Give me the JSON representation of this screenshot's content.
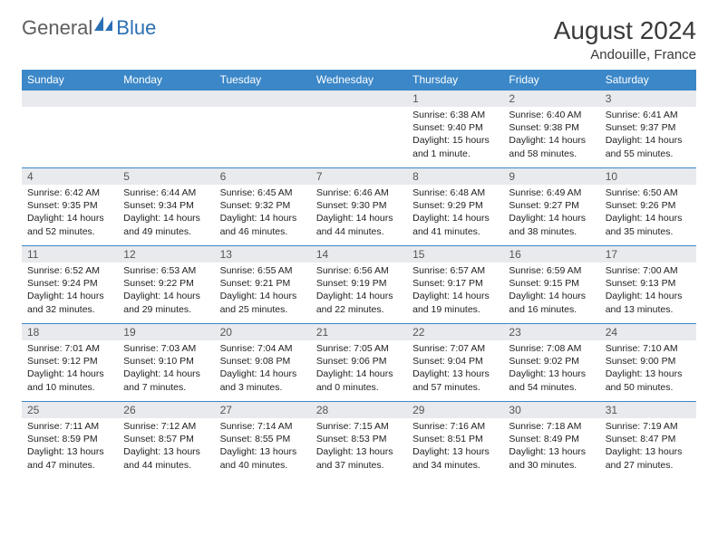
{
  "brand": {
    "part1": "General",
    "part2": "Blue"
  },
  "title": "August 2024",
  "location": "Andouille, France",
  "day_headers": [
    "Sunday",
    "Monday",
    "Tuesday",
    "Wednesday",
    "Thursday",
    "Friday",
    "Saturday"
  ],
  "colors": {
    "header_bg": "#3b87c8",
    "header_text": "#ffffff",
    "daynum_bg": "#e8eaed",
    "border": "#3b87c8",
    "logo_grey": "#5e5e5e",
    "logo_blue": "#2b6fb5"
  },
  "weeks": [
    [
      null,
      null,
      null,
      null,
      {
        "n": "1",
        "sunrise": "6:38 AM",
        "sunset": "9:40 PM",
        "daylight": "15 hours and 1 minute."
      },
      {
        "n": "2",
        "sunrise": "6:40 AM",
        "sunset": "9:38 PM",
        "daylight": "14 hours and 58 minutes."
      },
      {
        "n": "3",
        "sunrise": "6:41 AM",
        "sunset": "9:37 PM",
        "daylight": "14 hours and 55 minutes."
      }
    ],
    [
      {
        "n": "4",
        "sunrise": "6:42 AM",
        "sunset": "9:35 PM",
        "daylight": "14 hours and 52 minutes."
      },
      {
        "n": "5",
        "sunrise": "6:44 AM",
        "sunset": "9:34 PM",
        "daylight": "14 hours and 49 minutes."
      },
      {
        "n": "6",
        "sunrise": "6:45 AM",
        "sunset": "9:32 PM",
        "daylight": "14 hours and 46 minutes."
      },
      {
        "n": "7",
        "sunrise": "6:46 AM",
        "sunset": "9:30 PM",
        "daylight": "14 hours and 44 minutes."
      },
      {
        "n": "8",
        "sunrise": "6:48 AM",
        "sunset": "9:29 PM",
        "daylight": "14 hours and 41 minutes."
      },
      {
        "n": "9",
        "sunrise": "6:49 AM",
        "sunset": "9:27 PM",
        "daylight": "14 hours and 38 minutes."
      },
      {
        "n": "10",
        "sunrise": "6:50 AM",
        "sunset": "9:26 PM",
        "daylight": "14 hours and 35 minutes."
      }
    ],
    [
      {
        "n": "11",
        "sunrise": "6:52 AM",
        "sunset": "9:24 PM",
        "daylight": "14 hours and 32 minutes."
      },
      {
        "n": "12",
        "sunrise": "6:53 AM",
        "sunset": "9:22 PM",
        "daylight": "14 hours and 29 minutes."
      },
      {
        "n": "13",
        "sunrise": "6:55 AM",
        "sunset": "9:21 PM",
        "daylight": "14 hours and 25 minutes."
      },
      {
        "n": "14",
        "sunrise": "6:56 AM",
        "sunset": "9:19 PM",
        "daylight": "14 hours and 22 minutes."
      },
      {
        "n": "15",
        "sunrise": "6:57 AM",
        "sunset": "9:17 PM",
        "daylight": "14 hours and 19 minutes."
      },
      {
        "n": "16",
        "sunrise": "6:59 AM",
        "sunset": "9:15 PM",
        "daylight": "14 hours and 16 minutes."
      },
      {
        "n": "17",
        "sunrise": "7:00 AM",
        "sunset": "9:13 PM",
        "daylight": "14 hours and 13 minutes."
      }
    ],
    [
      {
        "n": "18",
        "sunrise": "7:01 AM",
        "sunset": "9:12 PM",
        "daylight": "14 hours and 10 minutes."
      },
      {
        "n": "19",
        "sunrise": "7:03 AM",
        "sunset": "9:10 PM",
        "daylight": "14 hours and 7 minutes."
      },
      {
        "n": "20",
        "sunrise": "7:04 AM",
        "sunset": "9:08 PM",
        "daylight": "14 hours and 3 minutes."
      },
      {
        "n": "21",
        "sunrise": "7:05 AM",
        "sunset": "9:06 PM",
        "daylight": "14 hours and 0 minutes."
      },
      {
        "n": "22",
        "sunrise": "7:07 AM",
        "sunset": "9:04 PM",
        "daylight": "13 hours and 57 minutes."
      },
      {
        "n": "23",
        "sunrise": "7:08 AM",
        "sunset": "9:02 PM",
        "daylight": "13 hours and 54 minutes."
      },
      {
        "n": "24",
        "sunrise": "7:10 AM",
        "sunset": "9:00 PM",
        "daylight": "13 hours and 50 minutes."
      }
    ],
    [
      {
        "n": "25",
        "sunrise": "7:11 AM",
        "sunset": "8:59 PM",
        "daylight": "13 hours and 47 minutes."
      },
      {
        "n": "26",
        "sunrise": "7:12 AM",
        "sunset": "8:57 PM",
        "daylight": "13 hours and 44 minutes."
      },
      {
        "n": "27",
        "sunrise": "7:14 AM",
        "sunset": "8:55 PM",
        "daylight": "13 hours and 40 minutes."
      },
      {
        "n": "28",
        "sunrise": "7:15 AM",
        "sunset": "8:53 PM",
        "daylight": "13 hours and 37 minutes."
      },
      {
        "n": "29",
        "sunrise": "7:16 AM",
        "sunset": "8:51 PM",
        "daylight": "13 hours and 34 minutes."
      },
      {
        "n": "30",
        "sunrise": "7:18 AM",
        "sunset": "8:49 PM",
        "daylight": "13 hours and 30 minutes."
      },
      {
        "n": "31",
        "sunrise": "7:19 AM",
        "sunset": "8:47 PM",
        "daylight": "13 hours and 27 minutes."
      }
    ]
  ],
  "labels": {
    "sunrise": "Sunrise: ",
    "sunset": "Sunset: ",
    "daylight": "Daylight: "
  }
}
